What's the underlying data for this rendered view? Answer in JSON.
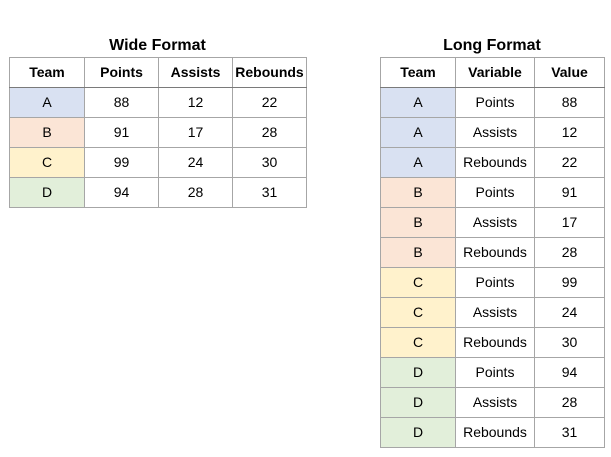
{
  "wide_table": {
    "title": "Wide Format",
    "headers": [
      "Team",
      "Points",
      "Assists",
      "Rebounds"
    ],
    "rows": [
      [
        "A",
        "88",
        "12",
        "22"
      ],
      [
        "B",
        "91",
        "17",
        "28"
      ],
      [
        "C",
        "99",
        "24",
        "30"
      ],
      [
        "D",
        "94",
        "28",
        "31"
      ]
    ]
  },
  "long_table": {
    "title": "Long Format",
    "headers": [
      "Team",
      "Variable",
      "Value"
    ],
    "rows": [
      [
        "A",
        "Points",
        "88"
      ],
      [
        "A",
        "Assists",
        "12"
      ],
      [
        "A",
        "Rebounds",
        "22"
      ],
      [
        "B",
        "Points",
        "91"
      ],
      [
        "B",
        "Assists",
        "17"
      ],
      [
        "B",
        "Rebounds",
        "28"
      ],
      [
        "C",
        "Points",
        "99"
      ],
      [
        "C",
        "Assists",
        "24"
      ],
      [
        "C",
        "Rebounds",
        "30"
      ],
      [
        "D",
        "Points",
        "94"
      ],
      [
        "D",
        "Assists",
        "28"
      ],
      [
        "D",
        "Rebounds",
        "31"
      ]
    ]
  },
  "team_colors": {
    "A": "#d9e1f2",
    "B": "#fbe5d6",
    "C": "#fff2cc",
    "D": "#e2efda"
  }
}
